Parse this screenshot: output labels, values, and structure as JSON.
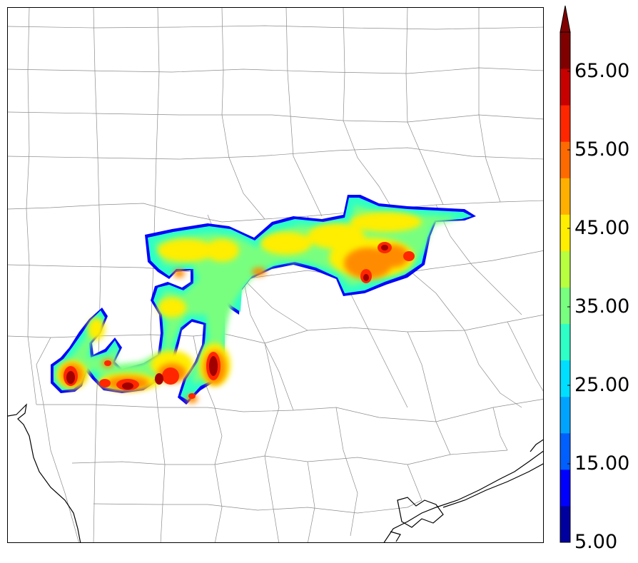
{
  "map": {
    "colors": {
      "county_lines": "#8c8c8c",
      "coastline": "#000000",
      "frame": "#000000"
    }
  },
  "colorbar": {
    "colors": [
      "#00009f",
      "#0000ff",
      "#005fff",
      "#00a4ff",
      "#00dfff",
      "#2dffc6",
      "#78ff7f",
      "#b8ff3f",
      "#ffee00",
      "#ffaf00",
      "#ff6a00",
      "#ff2600",
      "#c80000",
      "#800000"
    ],
    "extend_color": "#800000",
    "levels": [
      5,
      10,
      15,
      20,
      25,
      30,
      35,
      40,
      45,
      50,
      55,
      60,
      65,
      70
    ],
    "labels": [
      "5.00",
      "15.00",
      "25.00",
      "35.00",
      "45.00",
      "55.00",
      "65.00"
    ]
  }
}
